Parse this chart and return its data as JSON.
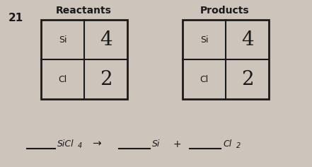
{
  "background_color": "#cdc5bc",
  "number_label": "21",
  "reactants_label": "Reactants",
  "products_label": "Products",
  "reactants_table": {
    "row1": [
      "Si",
      "4"
    ],
    "row2": [
      "Cl",
      "2"
    ]
  },
  "products_table": {
    "row1": [
      "Si",
      "4"
    ],
    "row2": [
      "Cl",
      "2"
    ]
  },
  "equation_arrow": "→",
  "table_color": "#cdc5bc",
  "border_color": "#1a1a1a",
  "text_color": "#1a1a1a"
}
